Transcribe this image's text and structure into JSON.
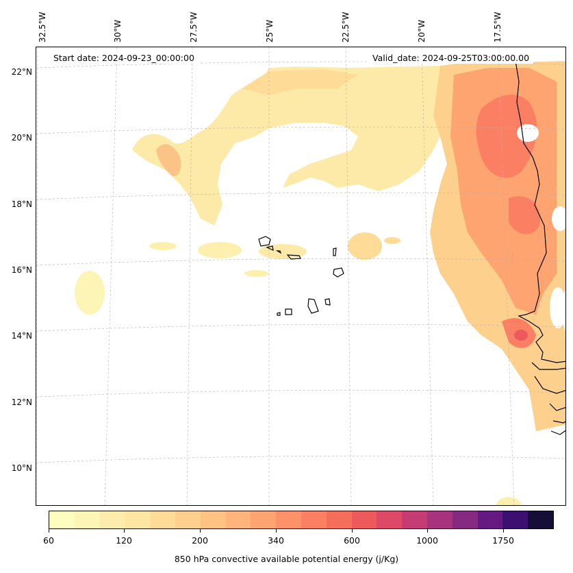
{
  "header": {
    "start_date": "Start date: 2024-09-23_00:00:00",
    "valid_date": "Valid_date: 2024-09-25T03:00:00.00"
  },
  "axes": {
    "lon_labels": [
      "32.5°W",
      "30°W",
      "27.5°W",
      "25°W",
      "22.5°W",
      "20°W",
      "17.5°W"
    ],
    "lat_labels": [
      "22°N",
      "20°N",
      "18°N",
      "16°N",
      "14°N",
      "12°N",
      "10°N"
    ]
  },
  "colorbar": {
    "label": "850 hPa convective available potential energy (j/Kg)",
    "tick_labels": [
      "60",
      "120",
      "200",
      "340",
      "600",
      "1000",
      "1750"
    ],
    "colors": [
      "#fcfdbf",
      "#fcf5b5",
      "#fcedac",
      "#fde5a2",
      "#fedc98",
      "#fed08d",
      "#fec383",
      "#feb47a",
      "#fea471",
      "#fd926a",
      "#fb8063",
      "#f56e5c",
      "#ec5a5c",
      "#de4968",
      "#c53c74",
      "#a7327e",
      "#862a81",
      "#641a80",
      "#3c0f70",
      "#150e37"
    ]
  },
  "map_features": [
    "coastline",
    "graticule",
    "cape-field"
  ]
}
